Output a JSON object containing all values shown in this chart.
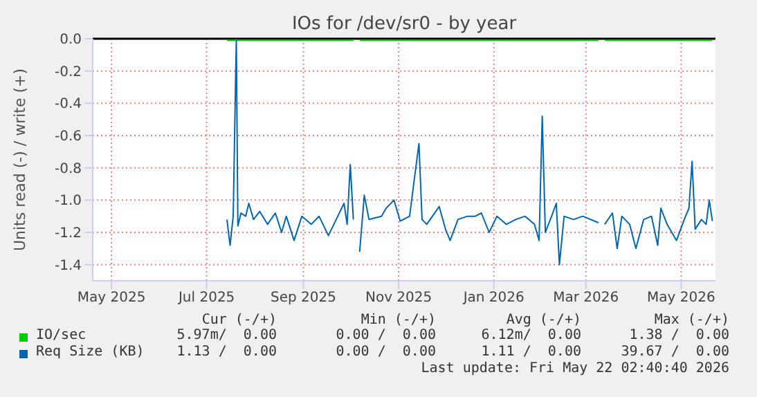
{
  "chart_data": {
    "type": "line",
    "title": "IOs for /dev/sr0 - by year",
    "ylabel": "Units read (-) / write (+)",
    "xlim": [
      "2025-04-19",
      "2026-05-23"
    ],
    "xticks": [
      {
        "value": "2025-05-01",
        "label": "May 2025"
      },
      {
        "value": "2025-07-01",
        "label": "Jul 2025"
      },
      {
        "value": "2025-09-01",
        "label": "Sep 2025"
      },
      {
        "value": "2025-11-01",
        "label": "Nov 2025"
      },
      {
        "value": "2026-01-01",
        "label": "Jan 2026"
      },
      {
        "value": "2026-03-01",
        "label": "Mar 2026"
      },
      {
        "value": "2026-05-01",
        "label": "May 2026"
      }
    ],
    "ylim": [
      -1.5,
      0
    ],
    "yticks": [
      {
        "value": 0,
        "label": "0.0"
      },
      {
        "value": -0.2,
        "label": "-0.2"
      },
      {
        "value": -0.4,
        "label": "-0.4"
      },
      {
        "value": -0.6,
        "label": "-0.6"
      },
      {
        "value": -0.8,
        "label": "-0.8"
      },
      {
        "value": -1,
        "label": "-1.0"
      },
      {
        "value": -1.2,
        "label": "-1.2"
      },
      {
        "value": -1.4,
        "label": "-1.4"
      }
    ],
    "grid": true,
    "legend": "bottom",
    "line_style": "solid",
    "marker": "none",
    "ref_lines": [
      {
        "axis": "y",
        "value": 0,
        "color": "#000000"
      }
    ],
    "series": [
      {
        "name": "IO/sec",
        "color": "#00cc00",
        "x": [
          "2025-07-14",
          "2025-10-03",
          "2025-10-05",
          "2025-10-07",
          "2026-03-09",
          "2026-03-11",
          "2026-03-13",
          "2026-05-21"
        ],
        "values": [
          -0.01,
          -0.01,
          null,
          -0.01,
          -0.01,
          null,
          -0.01,
          -0.01
        ]
      },
      {
        "name": "Req Size (KB)",
        "color": "#0066b3",
        "x": [
          "2025-07-14",
          "2025-07-16",
          "2025-07-18",
          "2025-07-20",
          "2025-07-21",
          "2025-07-23",
          "2025-07-26",
          "2025-07-28",
          "2025-07-31",
          "2025-08-04",
          "2025-08-09",
          "2025-08-14",
          "2025-08-18",
          "2025-08-21",
          "2025-08-26",
          "2025-08-31",
          "2025-09-06",
          "2025-09-11",
          "2025-09-17",
          "2025-09-23",
          "2025-09-27",
          "2025-09-29",
          "2025-10-01",
          "2025-10-03",
          "2025-10-05",
          "2025-10-07",
          "2025-10-10",
          "2025-10-13",
          "2025-10-21",
          "2025-10-24",
          "2025-10-29",
          "2025-11-02",
          "2025-11-08",
          "2025-11-14",
          "2025-11-16",
          "2025-11-19",
          "2025-11-27",
          "2025-12-01",
          "2025-12-04",
          "2025-12-09",
          "2025-12-15",
          "2025-12-20",
          "2025-12-24",
          "2025-12-29",
          "2026-01-03",
          "2026-01-09",
          "2026-01-15",
          "2026-01-21",
          "2026-01-27",
          "2026-01-30",
          "2026-02-01",
          "2026-02-03",
          "2026-02-07",
          "2026-02-10",
          "2026-02-12",
          "2026-02-15",
          "2026-02-21",
          "2026-02-27",
          "2026-03-09",
          "2026-03-11",
          "2026-03-13",
          "2026-03-18",
          "2026-03-21",
          "2026-03-24",
          "2026-03-29",
          "2026-04-02",
          "2026-04-07",
          "2026-04-12",
          "2026-04-16",
          "2026-04-18",
          "2026-04-22",
          "2026-04-28",
          "2026-05-03",
          "2026-05-06",
          "2026-05-08",
          "2026-05-10",
          "2026-05-14",
          "2026-05-17",
          "2026-05-19",
          "2026-05-21"
        ],
        "values": [
          -1.12,
          -1.28,
          -1.1,
          0,
          -1.16,
          -1.08,
          -1.1,
          -1.02,
          -1.12,
          -1.07,
          -1.15,
          -1.08,
          -1.2,
          -1.1,
          -1.25,
          -1.1,
          -1.15,
          -1.1,
          -1.22,
          -1.1,
          -1.02,
          -1.15,
          -0.78,
          -1.12,
          null,
          -1.32,
          -0.97,
          -1.12,
          -1.1,
          -1.05,
          -1.0,
          -1.13,
          -1.1,
          -0.65,
          -1.12,
          -1.15,
          -1.04,
          -1.18,
          -1.25,
          -1.12,
          -1.1,
          -1.1,
          -1.08,
          -1.2,
          -1.1,
          -1.15,
          -1.12,
          -1.1,
          -1.15,
          -1.25,
          -0.48,
          -1.2,
          -1.1,
          -1.02,
          -1.4,
          -1.1,
          -1.12,
          -1.1,
          -1.14,
          null,
          -1.15,
          -1.08,
          -1.3,
          -1.1,
          -1.15,
          -1.3,
          -1.12,
          -1.1,
          -1.28,
          -1.05,
          -1.15,
          -1.25,
          -1.12,
          -1.05,
          -0.76,
          -1.18,
          -1.12,
          -1.15,
          -1.0,
          -1.13
        ]
      }
    ],
    "annotations": [
      "Cur (-/+)",
      "Min (-/+)",
      "Avg (-/+)",
      "Max (-/+)",
      "5.97m/  0.00",
      "0.00 /  0.00",
      "6.12m/  0.00",
      "1.38 /  0.00",
      "1.13 /  0.00",
      "0.00 /  0.00",
      "1.11 /  0.00",
      "39.67 /  0.00",
      "Last update: Fri May 22 02:40:40 2026"
    ]
  }
}
